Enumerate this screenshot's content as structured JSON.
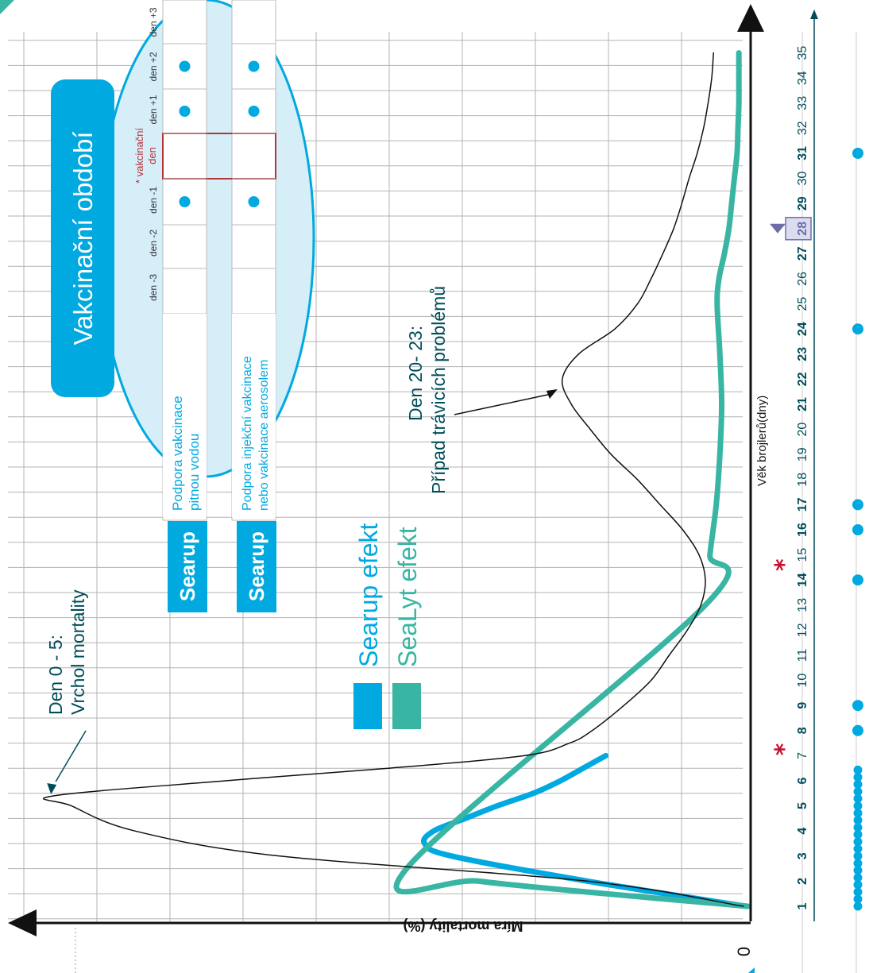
{
  "chart_data": {
    "type": "line",
    "orientation": "rotated-90",
    "xlabel": "Věk brojlerů(dny)",
    "ylabel": "Míra mortality (%)",
    "y_tick_labels": [
      "0"
    ],
    "x_ticks": [
      1,
      2,
      3,
      4,
      5,
      6,
      7,
      8,
      9,
      10,
      11,
      12,
      13,
      14,
      15,
      16,
      17,
      18,
      19,
      20,
      21,
      22,
      23,
      24,
      25,
      26,
      27,
      28,
      29,
      30,
      31,
      32,
      33,
      34,
      35
    ],
    "x_bold_ticks": [
      1,
      2,
      3,
      4,
      5,
      6,
      8,
      9,
      14,
      16,
      17,
      21,
      22,
      23,
      24,
      27,
      28,
      29,
      31
    ],
    "x_highlight_tick": 28,
    "red_star_days": [
      7.25,
      14.6
    ],
    "series": [
      {
        "name": "",
        "color": "#111111",
        "x": [
          1,
          2,
          3,
          4,
          5,
          5.4,
          6,
          6.5,
          7,
          7.5,
          8,
          9,
          10,
          11,
          12,
          13,
          14,
          15,
          16,
          17,
          18,
          19,
          20,
          21,
          22,
          23,
          24,
          25,
          26,
          27,
          28,
          29,
          30,
          31,
          32,
          33,
          34,
          35
        ],
        "y": [
          0.8,
          18,
          52,
          68,
          75,
          77,
          58,
          40,
          25,
          20,
          17.5,
          14,
          11,
          9,
          7,
          5.5,
          5,
          5.7,
          7.5,
          10,
          12.5,
          15.4,
          17.7,
          19.8,
          20.8,
          19,
          15,
          12.5,
          11,
          9.7,
          8.5,
          7.6,
          6.8,
          5.9,
          5.2,
          4.7,
          4.3,
          4.1
        ]
      },
      {
        "name": "Searup efekt",
        "color": "#00a9e0",
        "x": [
          1,
          2,
          3,
          3.5,
          4,
          4.5,
          5,
          5.5,
          6,
          6.5,
          7
        ],
        "y": [
          0.5,
          18,
          33,
          36,
          35,
          31.5,
          28,
          24,
          21,
          18.5,
          16
        ]
      },
      {
        "name": "SeaLyt efekt",
        "color": "#38b5a3",
        "x": [
          1,
          1.5,
          2,
          2.5,
          13,
          15,
          17,
          19,
          21,
          23,
          25,
          26,
          27,
          28,
          29,
          30,
          31,
          32,
          33,
          34,
          35
        ],
        "y": [
          0.3,
          16,
          30,
          38,
          5,
          4.5,
          3.8,
          3.4,
          3.2,
          3.4,
          3.7,
          3.5,
          2.9,
          2.4,
          2.1,
          1.8,
          1.5,
          1.4,
          1.3,
          1.3,
          1.3
        ]
      }
    ],
    "dot_rows": [
      {
        "x": [
          1,
          1.29,
          1.57,
          1.86,
          2.14,
          2.43,
          2.71,
          3,
          3.29,
          3.57,
          3.86,
          4.14,
          4.43,
          4.71,
          5,
          5.29,
          5.57,
          5.86,
          6.14,
          6.43,
          8,
          9,
          14,
          16,
          17,
          24,
          31
        ]
      }
    ],
    "annotations": [
      {
        "id": "peak",
        "lines": [
          "Den 0 - 5:",
          "Vrchol mortality"
        ],
        "target_x": 5.4,
        "target_y": 77
      },
      {
        "id": "digestive",
        "lines": [
          "Den 20- 23:",
          "Případ trávicích problémů"
        ],
        "target_x": 21.6,
        "target_y": 20.8
      }
    ]
  },
  "vaccination": {
    "title": "Vakcinační období",
    "day_headers": [
      "den -3",
      "den -2",
      "den -1",
      "* vakcinační den",
      "den +1",
      "den +2",
      "den +3"
    ],
    "vacc_day_line1": "* vakcinační",
    "vacc_day_line2": "den",
    "rows": [
      {
        "brand": "Searup",
        "line1": "Podpora vakcinace",
        "line2": "pitnou vodou",
        "dots": [
          false,
          false,
          true,
          false,
          true,
          true,
          false
        ]
      },
      {
        "brand": "Searup",
        "line1": "Podpora injekční vakcinace",
        "line2": "nebo vakcinace aerosolem",
        "dots": [
          false,
          false,
          true,
          false,
          true,
          true,
          false
        ]
      }
    ]
  },
  "legend": [
    {
      "label": "Searup efekt",
      "color": "#00a9e0"
    },
    {
      "label": "SeaLyt efekt",
      "color": "#38b5a3"
    }
  ],
  "colors": {
    "searup": "#00a9e0",
    "sealyt": "#38b5a3",
    "mortality_line": "#111111",
    "grid": "#b3b3b3",
    "axis_text": "#004d5a",
    "star": "#c8102e",
    "marker": "#6c6ea8",
    "ellipse_fill": "#d5eef8",
    "vacc_day_border": "#b5343a"
  }
}
